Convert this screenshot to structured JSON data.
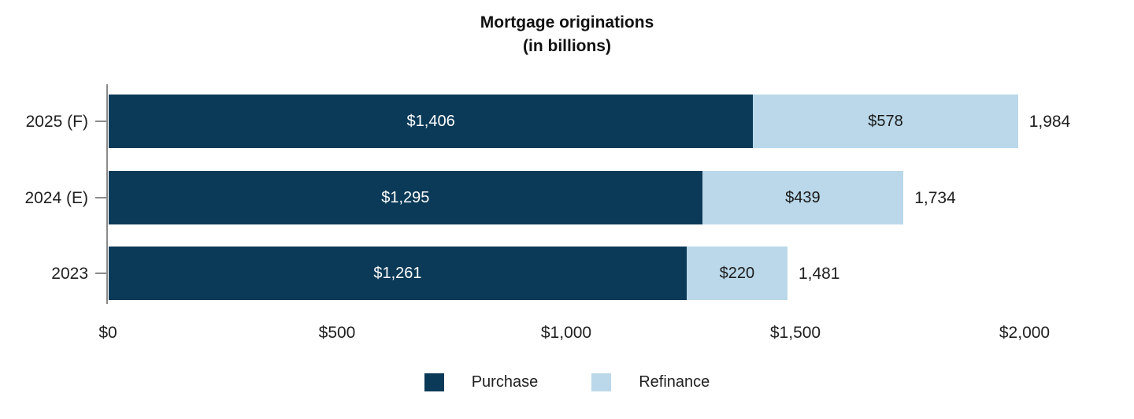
{
  "chart_data": {
    "type": "bar",
    "orientation": "horizontal",
    "stacked": true,
    "title": "Mortgage originations",
    "subtitle": "(in billions)",
    "categories": [
      "2025 (F)",
      "2024 (E)",
      "2023"
    ],
    "series": [
      {
        "name": "Purchase",
        "color": "#0b3a58",
        "label_color": "#ffffff",
        "values": [
          1406,
          1295,
          1261
        ],
        "labels": [
          "$1,406",
          "$1,295",
          "$1,261"
        ]
      },
      {
        "name": "Refinance",
        "color": "#bad8e9",
        "label_color": "#1a1a1a",
        "values": [
          578,
          439,
          220
        ],
        "labels": [
          "$578",
          "$439",
          "$220"
        ]
      }
    ],
    "totals": [
      1984,
      1734,
      1481
    ],
    "total_labels": [
      "1,984",
      "1,734",
      "1,481"
    ],
    "x_ticks": [
      {
        "value": 0,
        "label": "$0"
      },
      {
        "value": 500,
        "label": "$500"
      },
      {
        "value": 1000,
        "label": "$1,000"
      },
      {
        "value": 1500,
        "label": "$1,500"
      },
      {
        "value": 2000,
        "label": "$2,000"
      }
    ],
    "xlim": [
      0,
      2000
    ],
    "legend": [
      "Purchase",
      "Refinance"
    ],
    "legend_position": "bottom",
    "grid": false,
    "axis_color": "#8a8a8a",
    "text_color": "#1f1f1f"
  }
}
